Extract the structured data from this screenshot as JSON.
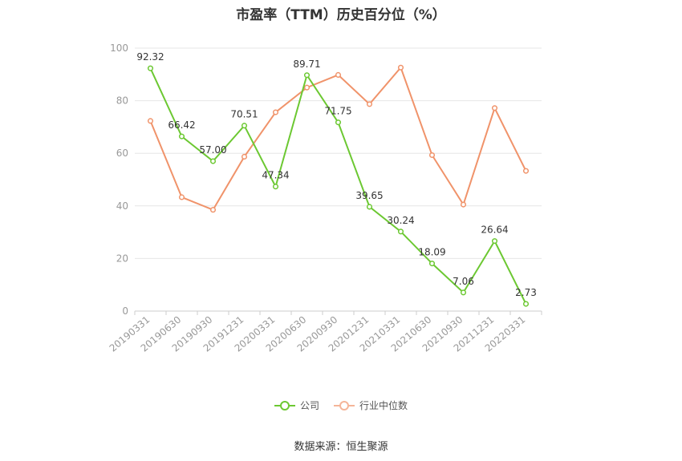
{
  "title": "市盈率（TTM）历史百分位（%）",
  "source": "数据来源：恒生聚源",
  "chart_data": {
    "type": "line",
    "categories": [
      "20190331",
      "20190630",
      "20190930",
      "20191231",
      "20200331",
      "20200630",
      "20200930",
      "20201231",
      "20210331",
      "20210630",
      "20210930",
      "20211231",
      "20220331"
    ],
    "ylim": [
      0,
      100
    ],
    "yticks": [
      0,
      20,
      40,
      60,
      80,
      100
    ],
    "grid": true,
    "legend_position": "bottom",
    "series": [
      {
        "name": "公司",
        "color": "#6cc832",
        "labels": true,
        "values": [
          92.32,
          66.42,
          57.0,
          70.51,
          47.34,
          89.71,
          71.75,
          39.65,
          30.24,
          18.09,
          7.06,
          26.64,
          2.73
        ],
        "value_labels": [
          "92.32",
          "66.42",
          "57.00",
          "70.51",
          "47.34",
          "89.71",
          "71.75",
          "39.65",
          "30.24",
          "18.09",
          "7.06",
          "26.64",
          "2.73"
        ]
      },
      {
        "name": "行业中位数",
        "color": "#f0936a",
        "labels": false,
        "values": [
          72.3,
          43.3,
          38.5,
          58.7,
          75.6,
          85.0,
          89.8,
          78.7,
          92.6,
          59.3,
          40.5,
          77.2,
          53.3
        ]
      }
    ]
  }
}
